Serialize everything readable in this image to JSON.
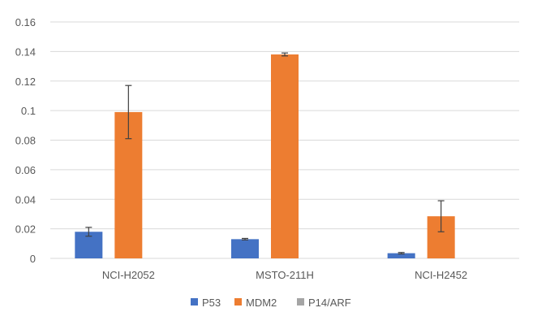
{
  "chart_data": {
    "type": "bar",
    "categories": [
      "NCI-H2052",
      "MSTO-211H",
      "NCI-H2452"
    ],
    "series": [
      {
        "name": "P53",
        "color": "#4472C4",
        "values": [
          0.018,
          0.013,
          0.0035
        ],
        "errors": [
          0.003,
          0.0005,
          0.0005
        ]
      },
      {
        "name": "MDM2",
        "color": "#ED7D31",
        "values": [
          0.099,
          0.138,
          0.0285
        ],
        "errors": [
          0.018,
          0.001,
          0.0105
        ]
      },
      {
        "name": "P14/ARF",
        "color": "#A5A5A5",
        "values": [
          0,
          0,
          0
        ],
        "errors": [
          0,
          0,
          0
        ]
      }
    ],
    "ylim": [
      0,
      0.16
    ],
    "yticks": [
      "0",
      "0.02",
      "0.04",
      "0.06",
      "0.08",
      "0.1",
      "0.12",
      "0.14",
      "0.16"
    ],
    "grid": true,
    "legend_position": "bottom",
    "gridline_color": "#D9D9D9",
    "errorbar_color": "#404040"
  }
}
